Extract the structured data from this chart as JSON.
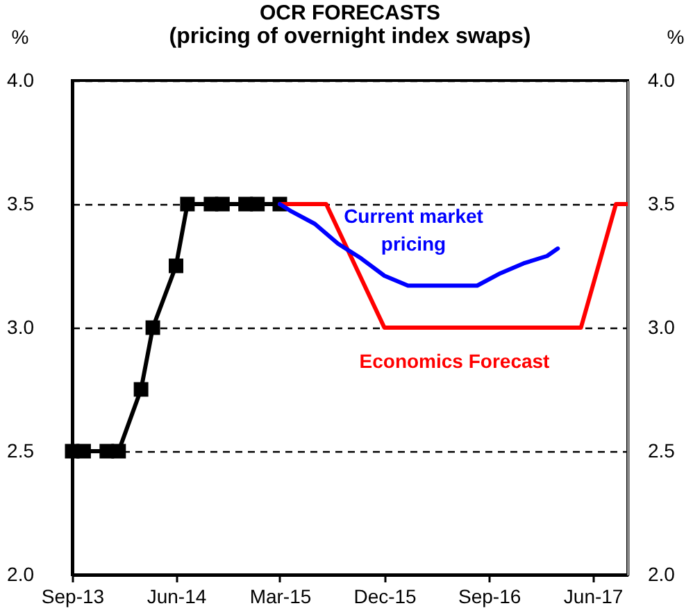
{
  "chart_data": {
    "type": "line",
    "title": "OCR FORECASTS",
    "subtitle": "(pricing of overnight index swaps)",
    "ylabel": "%",
    "y2label": "%",
    "xlim": [
      "2013-09",
      "2017-09"
    ],
    "xticks": [
      {
        "value": "2013-09",
        "label": "Sep-13"
      },
      {
        "value": "2014-06",
        "label": "Jun-14"
      },
      {
        "value": "2015-03",
        "label": "Mar-15"
      },
      {
        "value": "2015-12",
        "label": "Dec-15"
      },
      {
        "value": "2016-09",
        "label": "Sep-16"
      },
      {
        "value": "2017-06",
        "label": "Jun-17"
      }
    ],
    "ylim": [
      2,
      4
    ],
    "yticks": [
      {
        "value": 2,
        "label": "2.0"
      },
      {
        "value": 2.5,
        "label": "2.5"
      },
      {
        "value": 3,
        "label": "3.0"
      },
      {
        "value": 3.5,
        "label": "3.5"
      },
      {
        "value": 4,
        "label": "4.0"
      }
    ],
    "y2lim": [
      2,
      4
    ],
    "y2ticks": [
      {
        "value": 2,
        "label": "2.0"
      },
      {
        "value": 2.5,
        "label": "2.5"
      },
      {
        "value": 3,
        "label": "3.0"
      },
      {
        "value": 3.5,
        "label": "3.5"
      },
      {
        "value": 4,
        "label": "4.0"
      }
    ],
    "grid": "y",
    "legend": false,
    "line_style": "solid",
    "series": [
      {
        "color": "#000000",
        "marker": "square",
        "x": [
          "2013-09",
          "2013-10",
          "2013-12",
          "2014-01",
          "2014-03",
          "2014-04",
          "2014-06",
          "2014-07",
          "2014-09",
          "2014-10",
          "2014-12",
          "2015-01",
          "2015-03"
        ],
        "values": [
          2.5,
          2.5,
          2.5,
          2.5,
          2.75,
          3.0,
          3.25,
          3.5,
          3.5,
          3.5,
          3.5,
          3.5,
          3.5
        ]
      },
      {
        "name": "Economics Forecast",
        "color": "#ff0000",
        "marker": "none",
        "x": [
          "2015-03",
          "2015-07",
          "2015-12",
          "2017-05",
          "2017-08",
          "2017-09"
        ],
        "values": [
          3.5,
          3.5,
          3.0,
          3.0,
          3.5,
          3.5
        ]
      },
      {
        "name": "Current market pricing",
        "color": "#0000ff",
        "marker": "none",
        "x": [
          "2015-03",
          "2015-04",
          "2015-06",
          "2015-08",
          "2015-10",
          "2015-12",
          "2016-02",
          "2016-08",
          "2016-10",
          "2016-12",
          "2017-02",
          "2017-03"
        ],
        "values": [
          3.5,
          3.47,
          3.42,
          3.34,
          3.28,
          3.21,
          3.17,
          3.17,
          3.22,
          3.26,
          3.29,
          3.32
        ]
      }
    ]
  }
}
